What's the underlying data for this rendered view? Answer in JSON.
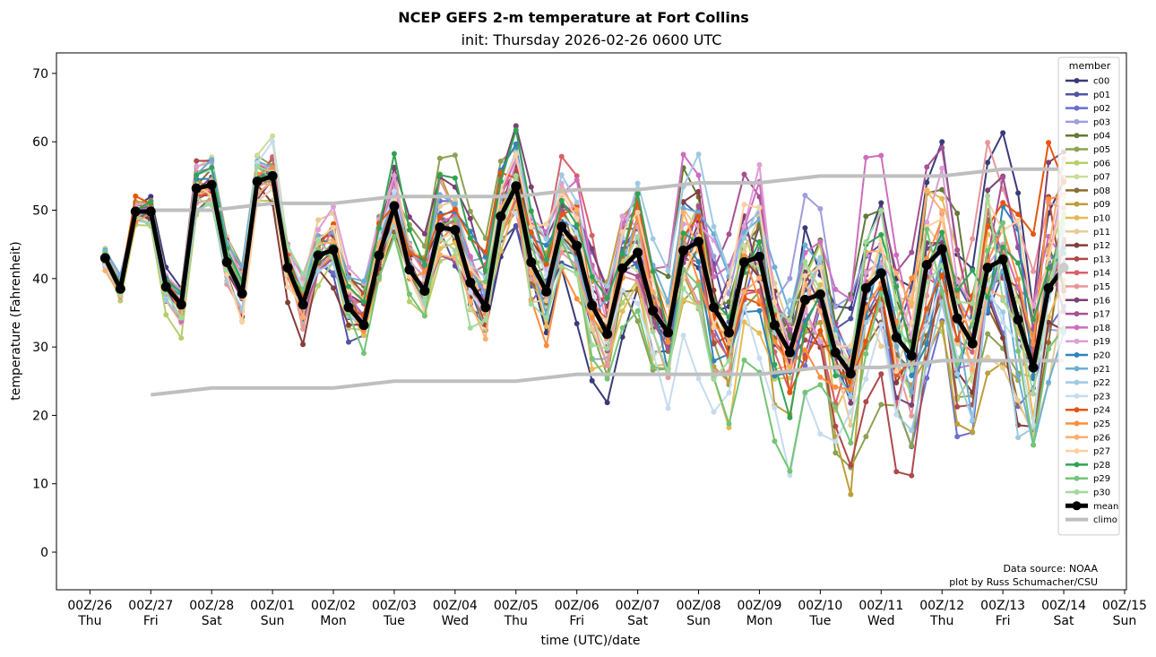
{
  "chart_data": {
    "type": "line",
    "title": "NCEP GEFS 2-m temperature at Fort Collins",
    "subtitle": "init: Thursday 2026-02-26 0600 UTC",
    "xlabel": "time (UTC)/date",
    "ylabel": "temperature (Fahrenheit)",
    "ylim": [
      -5.5,
      73
    ],
    "yticks": [
      0,
      10,
      20,
      30,
      40,
      50,
      60,
      70
    ],
    "x_unit": "days since 00Z/26",
    "xlim": [
      -0.55,
      17.03
    ],
    "xticks": [
      {
        "value": 0,
        "line1": "00Z/26",
        "line2": "Thu"
      },
      {
        "value": 1,
        "line1": "00Z/27",
        "line2": "Fri"
      },
      {
        "value": 2,
        "line1": "00Z/28",
        "line2": "Sat"
      },
      {
        "value": 3,
        "line1": "00Z/01",
        "line2": "Sun"
      },
      {
        "value": 4,
        "line1": "00Z/02",
        "line2": "Mon"
      },
      {
        "value": 5,
        "line1": "00Z/03",
        "line2": "Tue"
      },
      {
        "value": 6,
        "line1": "00Z/04",
        "line2": "Wed"
      },
      {
        "value": 7,
        "line1": "00Z/05",
        "line2": "Thu"
      },
      {
        "value": 8,
        "line1": "00Z/06",
        "line2": "Fri"
      },
      {
        "value": 9,
        "line1": "00Z/07",
        "line2": "Sat"
      },
      {
        "value": 10,
        "line1": "00Z/08",
        "line2": "Sun"
      },
      {
        "value": 11,
        "line1": "00Z/09",
        "line2": "Mon"
      },
      {
        "value": 12,
        "line1": "00Z/10",
        "line2": "Tue"
      },
      {
        "value": 13,
        "line1": "00Z/11",
        "line2": "Wed"
      },
      {
        "value": 14,
        "line1": "00Z/12",
        "line2": "Thu"
      },
      {
        "value": 15,
        "line1": "00Z/13",
        "line2": "Fri"
      },
      {
        "value": 16,
        "line1": "00Z/14",
        "line2": "Sat"
      },
      {
        "value": 17,
        "line1": "00Z/15",
        "line2": "Sun"
      }
    ],
    "grid": false,
    "legend": {
      "title": "member",
      "placement": "top-right"
    },
    "x_start": 0.25,
    "x_step": 0.25,
    "mean": {
      "name": "mean",
      "color": "#000000",
      "values": [
        43,
        38.5,
        49.8,
        49.8,
        38.8,
        36.2,
        53.2,
        53.7,
        42.4,
        37.8,
        54.2,
        55,
        41.6,
        36.2,
        43.4,
        44.2,
        35.8,
        33.2,
        43.4,
        50.6,
        41.3,
        38.2,
        47.5,
        47.1,
        39.4,
        35.8,
        49.1,
        53.5,
        42.4,
        38.1,
        47.6,
        44.8,
        36.1,
        31.9,
        41.5,
        43.8,
        35.3,
        32.1,
        44.1,
        45.4,
        35.8,
        32.1,
        42.4,
        43.2,
        33.2,
        29.2,
        36.9,
        37.7,
        29.2,
        26.1,
        38.6,
        40.8,
        31.4,
        28.7,
        42,
        44.3,
        34.2,
        30.5,
        41.6,
        42.8,
        34,
        27,
        38.6,
        41.6
      ]
    },
    "climo": {
      "name": "climo",
      "color": "#bfbfbf",
      "high": {
        "x": [
          1,
          2,
          3,
          4,
          5,
          6,
          7,
          8,
          9,
          10,
          11,
          12,
          13,
          14,
          15,
          16
        ],
        "values": [
          50,
          50,
          51,
          51,
          52,
          52,
          52,
          53,
          53,
          54,
          54,
          55,
          55,
          55,
          56,
          56
        ]
      },
      "low": {
        "x": [
          1,
          2,
          3,
          4,
          5,
          6,
          7,
          8,
          9,
          10,
          11,
          12,
          13,
          14,
          15,
          16
        ],
        "values": [
          23,
          24,
          24,
          24,
          25,
          25,
          25,
          26,
          26,
          26,
          26,
          27,
          27,
          28,
          28,
          28
        ]
      }
    },
    "members": [
      {
        "name": "c00",
        "color": "#393b79"
      },
      {
        "name": "p01",
        "color": "#5254a3"
      },
      {
        "name": "p02",
        "color": "#6b6ecf"
      },
      {
        "name": "p03",
        "color": "#9c9ede"
      },
      {
        "name": "p04",
        "color": "#637939"
      },
      {
        "name": "p05",
        "color": "#8ca252"
      },
      {
        "name": "p06",
        "color": "#b5cf6b"
      },
      {
        "name": "p07",
        "color": "#cedb9c"
      },
      {
        "name": "p08",
        "color": "#8c6d31"
      },
      {
        "name": "p09",
        "color": "#bd9e39"
      },
      {
        "name": "p10",
        "color": "#e7ba52"
      },
      {
        "name": "p11",
        "color": "#e7cb94"
      },
      {
        "name": "p12",
        "color": "#843c39"
      },
      {
        "name": "p13",
        "color": "#ad494a"
      },
      {
        "name": "p14",
        "color": "#d6616b"
      },
      {
        "name": "p15",
        "color": "#e7969c"
      },
      {
        "name": "p16",
        "color": "#7b4173"
      },
      {
        "name": "p17",
        "color": "#a55194"
      },
      {
        "name": "p18",
        "color": "#ce6dbd"
      },
      {
        "name": "p19",
        "color": "#de9ed6"
      },
      {
        "name": "p20",
        "color": "#3182bd"
      },
      {
        "name": "p21",
        "color": "#6baed6"
      },
      {
        "name": "p22",
        "color": "#9ecae1"
      },
      {
        "name": "p23",
        "color": "#c6dbef"
      },
      {
        "name": "p24",
        "color": "#e6550d"
      },
      {
        "name": "p25",
        "color": "#fd8d3c"
      },
      {
        "name": "p26",
        "color": "#fdae6b"
      },
      {
        "name": "p27",
        "color": "#fdd0a2"
      },
      {
        "name": "p28",
        "color": "#31a354"
      },
      {
        "name": "p29",
        "color": "#74c476"
      },
      {
        "name": "p30",
        "color": "#a1d99b"
      }
    ],
    "member_spread_note": "individual member values approximated as offsets around the ensemble mean",
    "annotations": [
      "Data source: NOAA",
      "plot by Russ Schumacher/CSU"
    ]
  }
}
